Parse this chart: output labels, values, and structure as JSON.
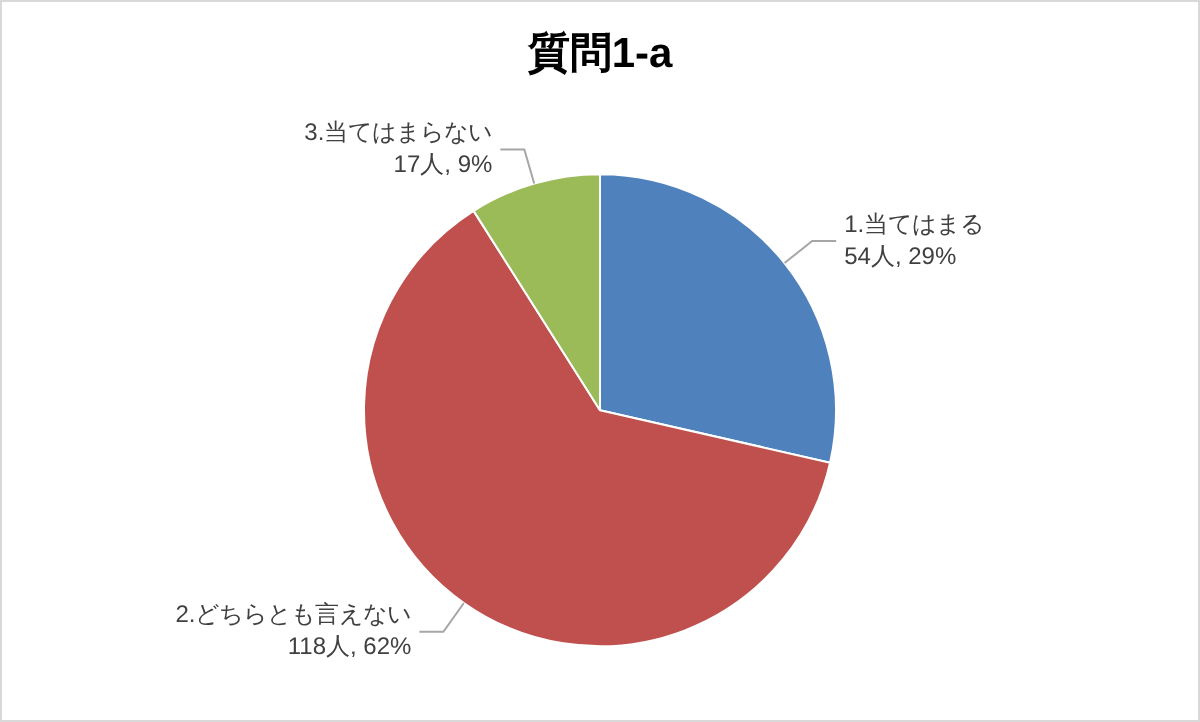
{
  "chart_data": {
    "type": "pie",
    "title": "質問1-a",
    "categories": [
      "1.当てはまる",
      "2.どちらとも言えない",
      "3.当てはまらない"
    ],
    "values": [
      54,
      118,
      17
    ],
    "colors": [
      "#4f81bd",
      "#c0504d",
      "#9bbb59"
    ],
    "value_labels": [
      "54人, 29%",
      "118人, 62%",
      "17人, 9%"
    ]
  }
}
